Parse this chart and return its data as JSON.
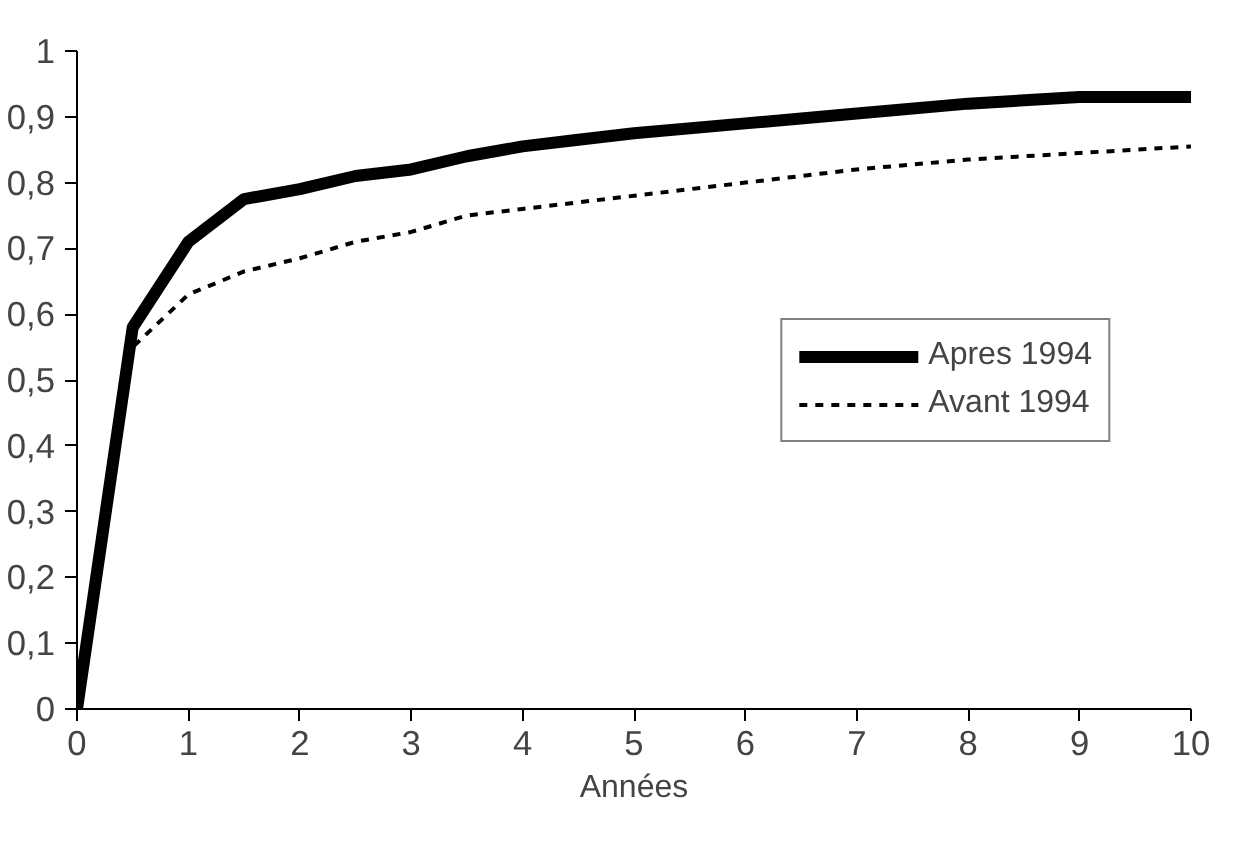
{
  "chart_data": {
    "type": "line",
    "xlabel": "Années",
    "xlim": [
      0,
      10
    ],
    "xticks": [
      0,
      1,
      2,
      3,
      4,
      5,
      6,
      7,
      8,
      9,
      10
    ],
    "ylim": [
      0,
      1
    ],
    "yticks": [
      0,
      {
        "value": 0.1,
        "label": "0,1"
      },
      {
        "value": 0.2,
        "label": "0,2"
      },
      {
        "value": 0.3,
        "label": "0,3"
      },
      {
        "value": 0.4,
        "label": "0,4"
      },
      {
        "value": 0.5,
        "label": "0,5"
      },
      {
        "value": 0.6,
        "label": "0,6"
      },
      {
        "value": 0.7,
        "label": "0,7"
      },
      {
        "value": 0.8,
        "label": "0,8"
      },
      {
        "value": 0.9,
        "label": "0,9"
      },
      1
    ],
    "grid": false,
    "legend": "right",
    "series": [
      {
        "name": "Apres 1994",
        "color": "#000000",
        "line_style": "solid",
        "x": [
          0,
          0.5,
          1,
          1.5,
          2,
          2.5,
          3,
          3.5,
          4,
          4.5,
          5,
          6,
          7,
          8,
          9,
          10
        ],
        "values": [
          0,
          0.58,
          0.71,
          0.775,
          0.79,
          0.81,
          0.82,
          0.84,
          0.855,
          0.865,
          0.875,
          0.89,
          0.905,
          0.92,
          0.93,
          0.93
        ]
      },
      {
        "name": "Avant 1994",
        "color": "#000000",
        "line_style": "dashed",
        "x": [
          0,
          0.5,
          1,
          1.5,
          2,
          2.5,
          3,
          3.5,
          4,
          5,
          6,
          7,
          8,
          9,
          10
        ],
        "values": [
          0,
          0.55,
          0.63,
          0.665,
          0.685,
          0.71,
          0.725,
          0.75,
          0.76,
          0.78,
          0.8,
          0.82,
          0.835,
          0.845,
          0.855
        ]
      }
    ]
  }
}
